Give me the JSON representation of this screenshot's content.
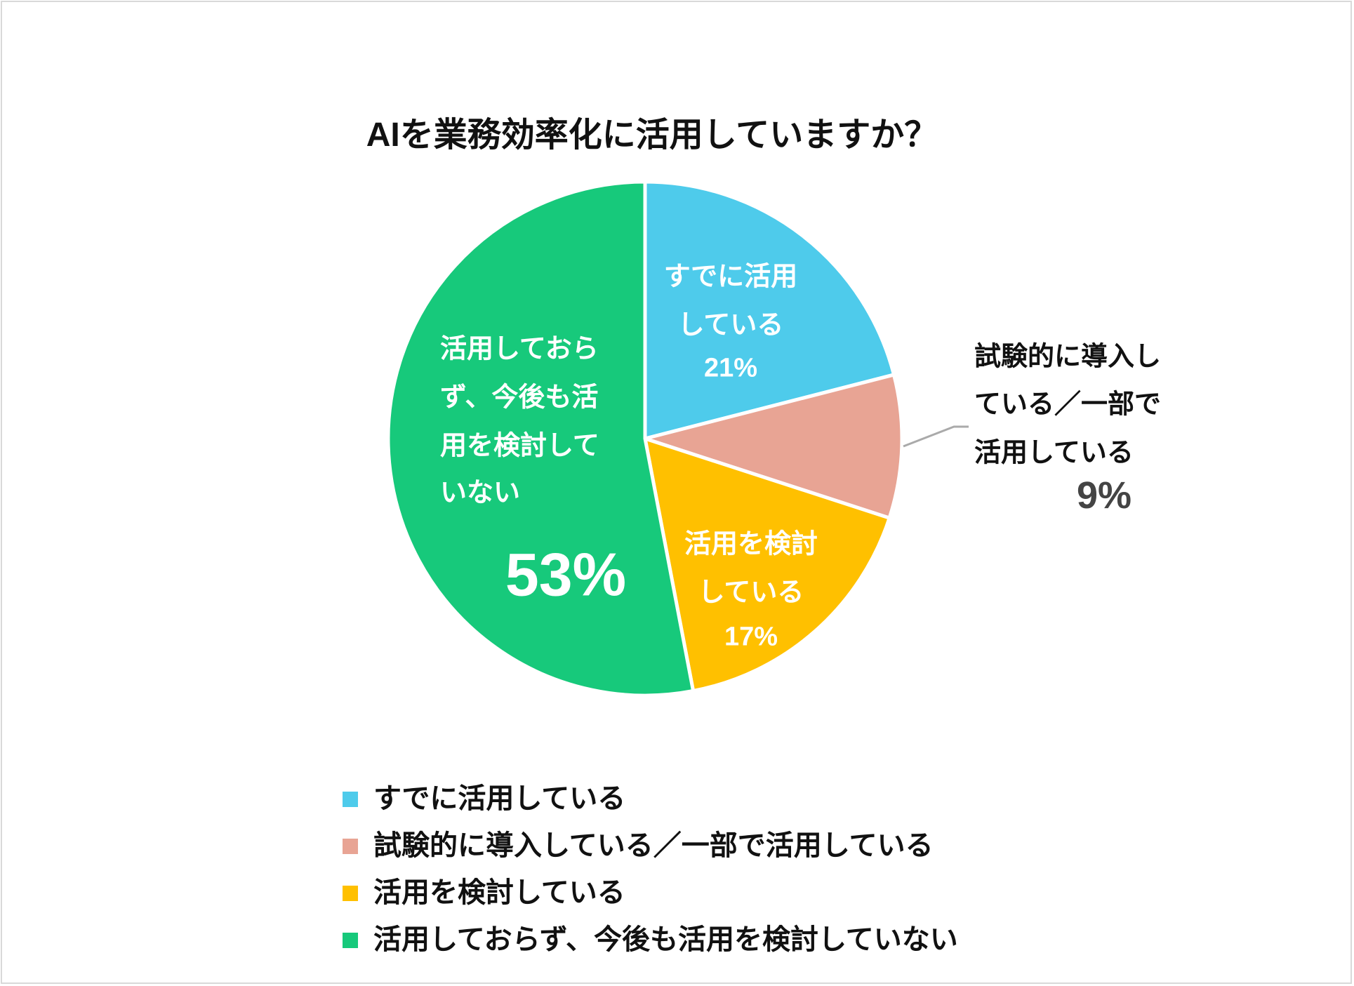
{
  "chart_data": {
    "type": "pie",
    "title": "AIを業務効率化に活用していますか？",
    "slices": [
      {
        "label": "すでに活用している",
        "value": 21,
        "value_label": "21%",
        "color": "#4ecbeb",
        "lines": [
          "すでに活用",
          "している"
        ]
      },
      {
        "label": "試験的に導入している／一部で活用している",
        "value": 9,
        "value_label": "9%",
        "color": "#e8a494",
        "lines": [
          "試験的に導入し",
          "ている／一部で",
          "活用している"
        ]
      },
      {
        "label": "活用を検討している",
        "value": 17,
        "value_label": "17%",
        "color": "#ffc000",
        "lines": [
          "活用を検討",
          "している"
        ]
      },
      {
        "label": "活用しておらず、今後も活用を検討していない",
        "value": 53,
        "value_label": "53%",
        "color": "#17c97b",
        "lines": [
          "活用しておら",
          "ず、今後も活",
          "用を検討して",
          "いない"
        ]
      }
    ],
    "legend_position": "bottom"
  }
}
